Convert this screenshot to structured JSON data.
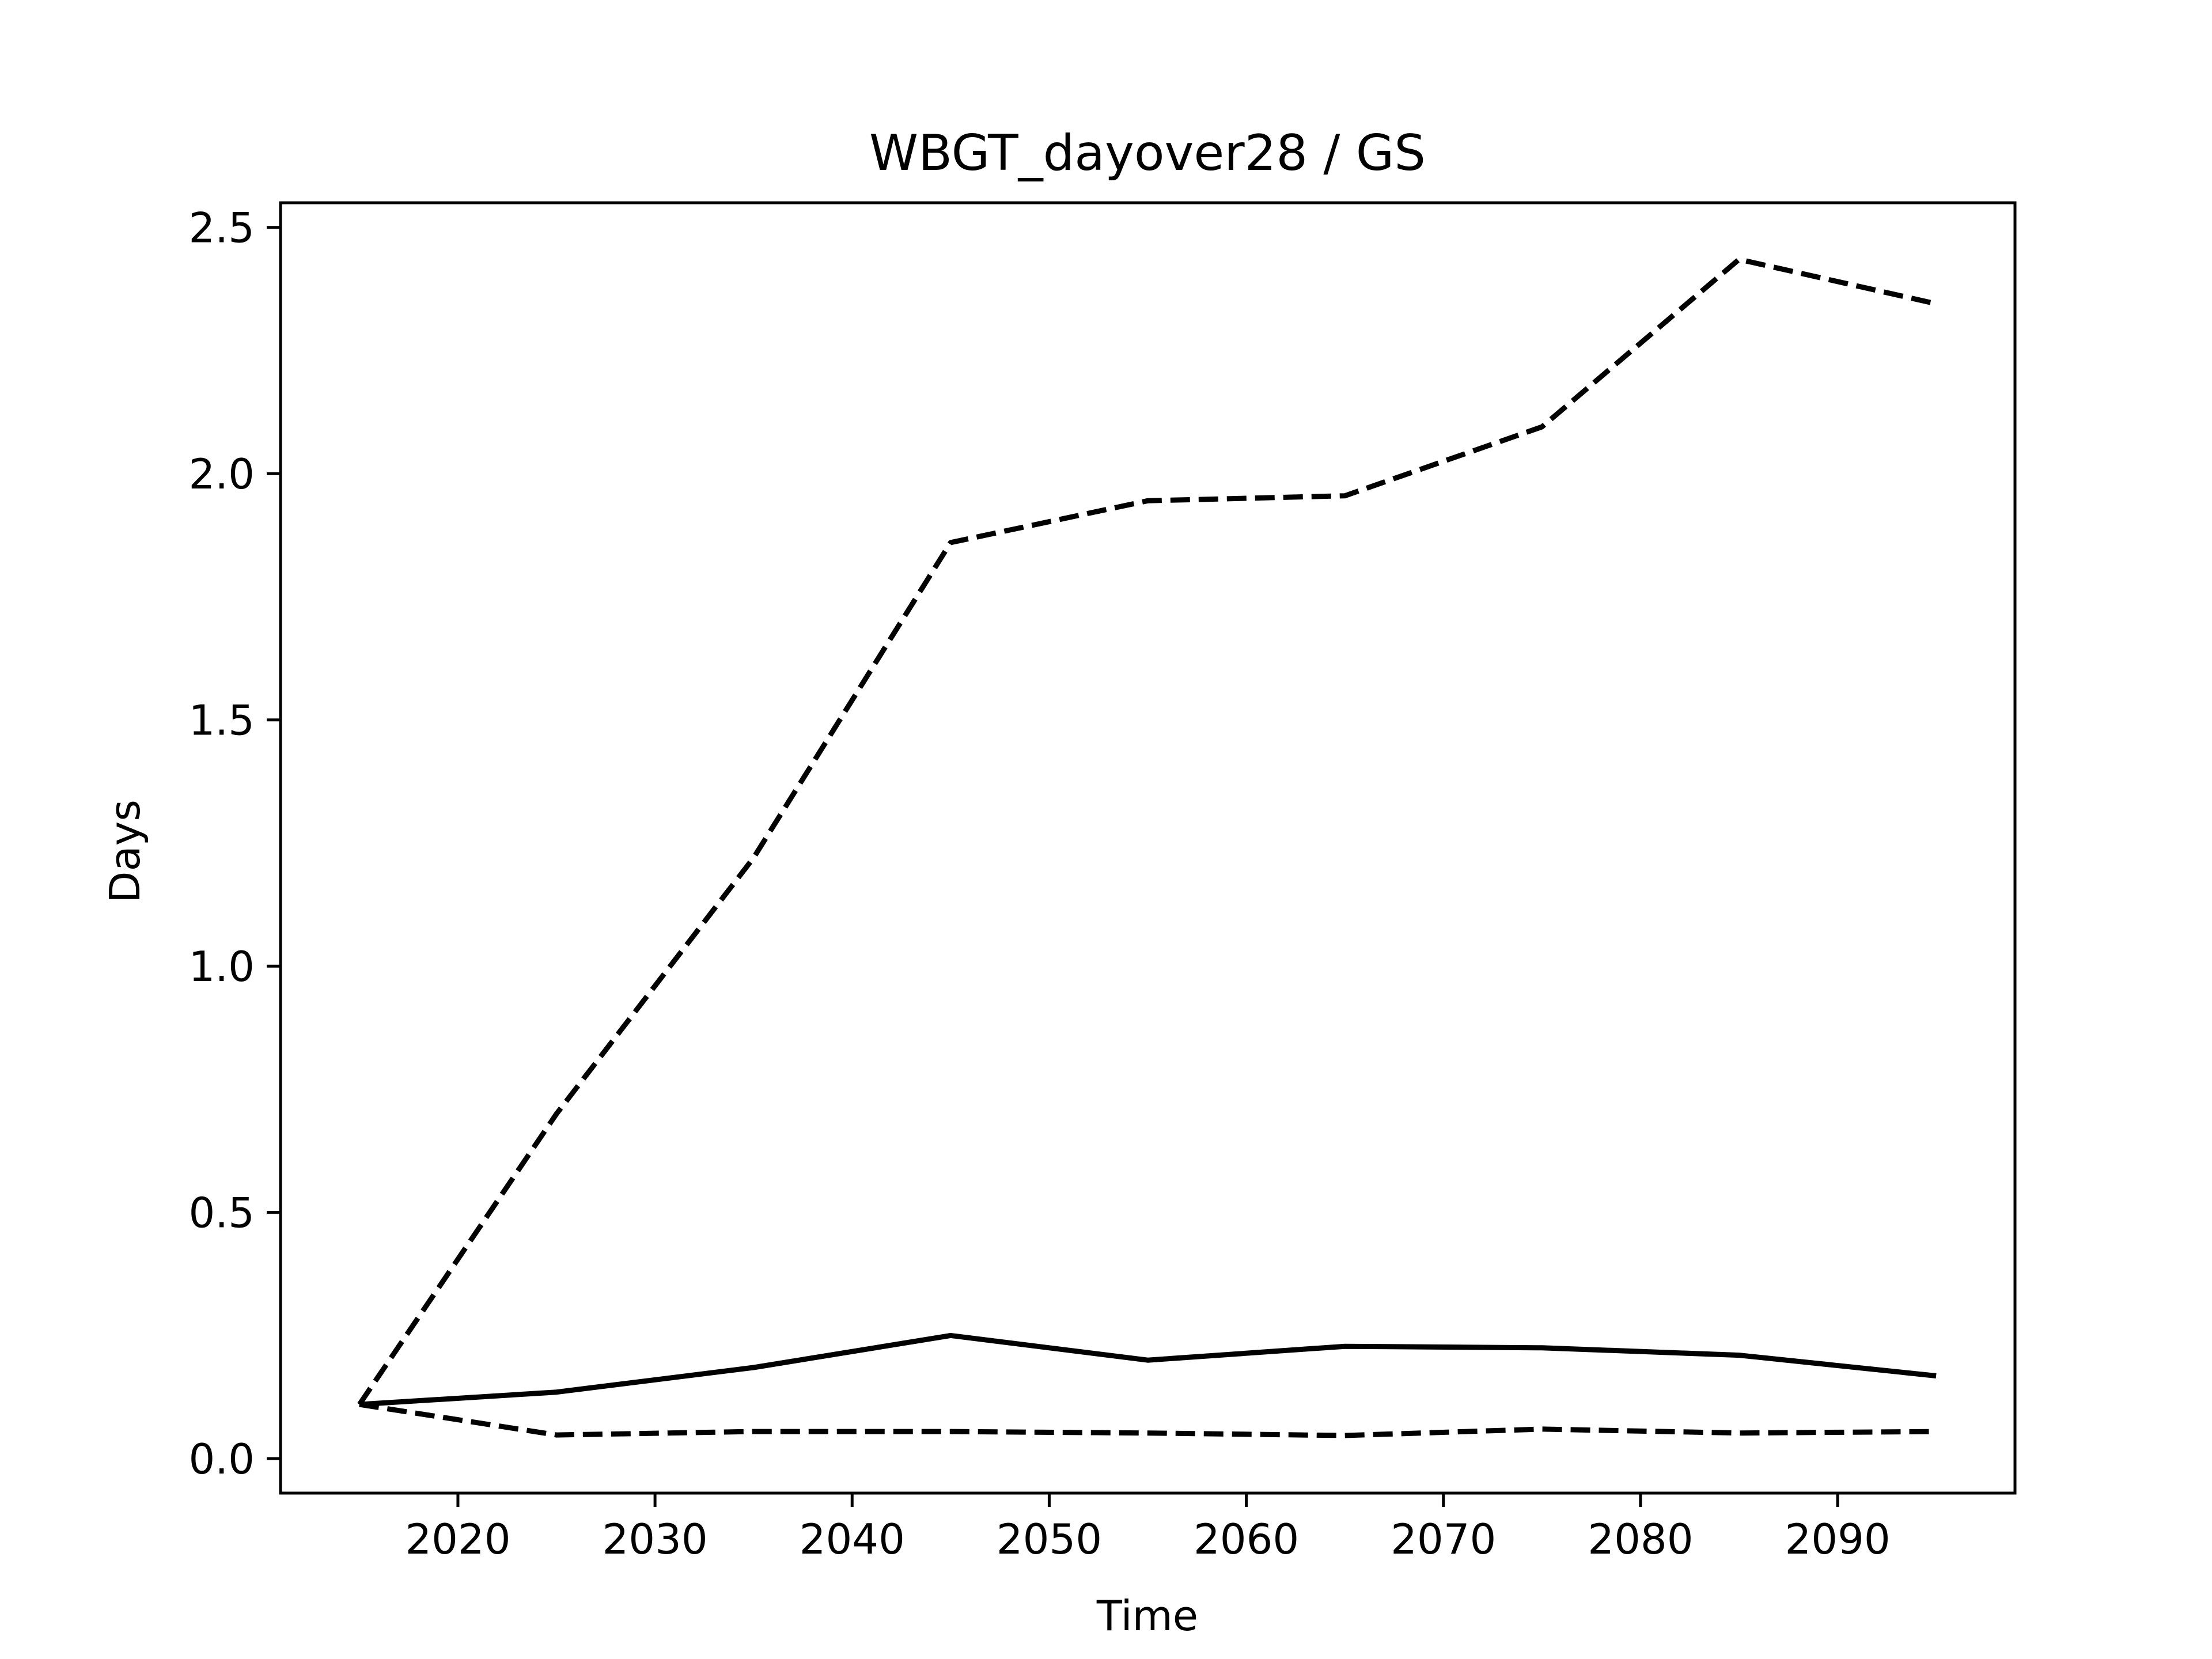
{
  "chart_data": {
    "type": "line",
    "title": "WBGT_dayover28 / GS",
    "xlabel": "Time",
    "ylabel": "Days",
    "xlim": [
      2011,
      2099
    ],
    "ylim": [
      -0.07,
      2.55
    ],
    "xticks": [
      2020,
      2030,
      2040,
      2050,
      2060,
      2070,
      2080,
      2090
    ],
    "yticks": [
      0.0,
      0.5,
      1.0,
      1.5,
      2.0,
      2.5
    ],
    "ytick_labels": [
      "0.0",
      "0.5",
      "1.0",
      "1.5",
      "2.0",
      "2.5"
    ],
    "grid": false,
    "legend": "none",
    "x": [
      2015,
      2025,
      2035,
      2045,
      2055,
      2065,
      2075,
      2085,
      2095
    ],
    "series": [
      {
        "style": "solid",
        "color": "#000000",
        "values": [
          0.11,
          0.135,
          0.185,
          0.25,
          0.2,
          0.228,
          0.225,
          0.21,
          0.168
        ]
      },
      {
        "style": "dashed",
        "color": "#000000",
        "values": [
          0.11,
          0.7,
          1.22,
          1.86,
          1.945,
          1.955,
          2.095,
          2.435,
          2.345
        ]
      },
      {
        "style": "dashed",
        "color": "#000000",
        "values": [
          0.11,
          0.048,
          0.055,
          0.055,
          0.052,
          0.047,
          0.06,
          0.052,
          0.055
        ]
      }
    ]
  }
}
